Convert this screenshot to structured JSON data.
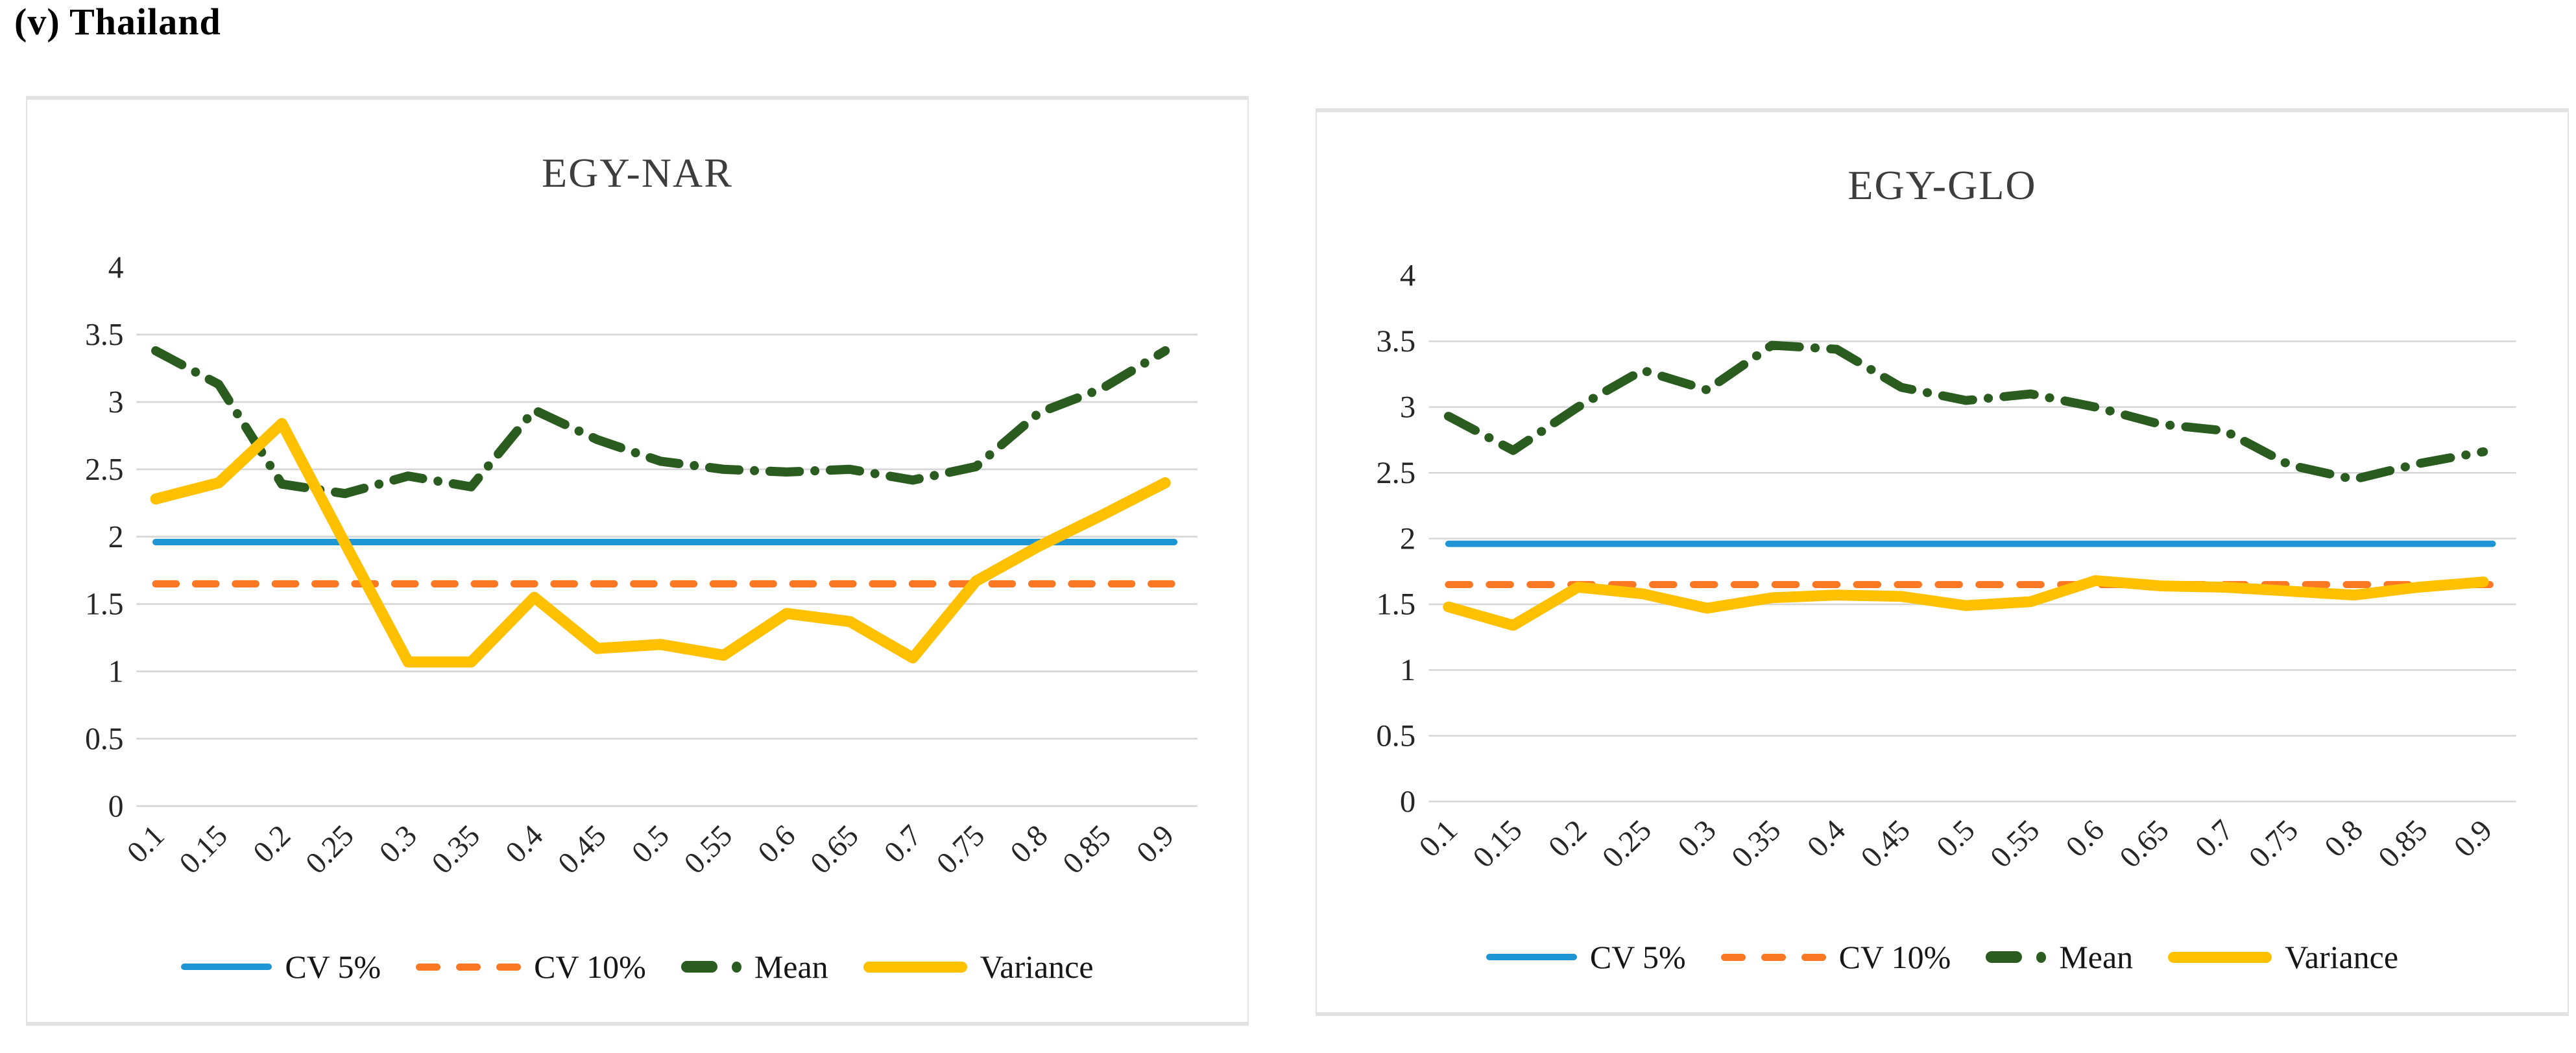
{
  "page": {
    "heading": "(v) Thailand"
  },
  "colors": {
    "cv5": "#1e95d4",
    "cv10": "#fa7823",
    "mean": "#2a5c20",
    "variance": "#ffc000",
    "grid": "#d6d6d6",
    "axis_text": "#262626",
    "title_text": "#3d3d3d"
  },
  "legend": [
    {
      "key": "cv5",
      "label": "CV 5%"
    },
    {
      "key": "cv10",
      "label": "CV 10%"
    },
    {
      "key": "mean",
      "label": "Mean"
    },
    {
      "key": "variance",
      "label": "Variance"
    }
  ],
  "axes": {
    "y_ticks": [
      "4",
      "3.5",
      "3",
      "2.5",
      "2",
      "1.5",
      "1",
      "0.5",
      "0"
    ],
    "y_min": 0,
    "y_max": 4,
    "grid_values": [
      0,
      0.5,
      1,
      1.5,
      2,
      2.5,
      3,
      3.5
    ]
  },
  "chart_data": [
    {
      "type": "line",
      "title": "EGY-NAR",
      "xlabel": "",
      "ylabel": "",
      "ylim": [
        0,
        4
      ],
      "grid": true,
      "legend_position": "bottom",
      "categories": [
        "0.1",
        "0.15",
        "0.2",
        "0.25",
        "0.3",
        "0.35",
        "0.4",
        "0.45",
        "0.5",
        "0.55",
        "0.6",
        "0.65",
        "0.7",
        "0.75",
        "0.8",
        "0.85",
        "0.9"
      ],
      "series": [
        {
          "name": "CV 5%",
          "style": "cv5",
          "constant": 1.96
        },
        {
          "name": "CV 10%",
          "style": "cv10",
          "constant": 1.65
        },
        {
          "name": "Mean",
          "style": "mean",
          "values": [
            3.38,
            3.13,
            2.39,
            2.32,
            2.45,
            2.37,
            2.94,
            2.72,
            2.56,
            2.5,
            2.48,
            2.5,
            2.42,
            2.52,
            2.92,
            3.1,
            3.38
          ]
        },
        {
          "name": "Variance",
          "style": "variance",
          "values": [
            2.28,
            2.4,
            2.84,
            1.95,
            1.07,
            1.07,
            1.55,
            1.17,
            1.2,
            1.12,
            1.43,
            1.37,
            1.1,
            1.67,
            1.93,
            2.16,
            2.4
          ]
        }
      ]
    },
    {
      "type": "line",
      "title": "EGY-GLO",
      "xlabel": "",
      "ylabel": "",
      "ylim": [
        0,
        4
      ],
      "grid": true,
      "legend_position": "bottom",
      "categories": [
        "0.1",
        "0.15",
        "0.2",
        "0.25",
        "0.3",
        "0.35",
        "0.4",
        "0.45",
        "0.5",
        "0.55",
        "0.6",
        "0.65",
        "0.7",
        "0.75",
        "0.8",
        "0.85",
        "0.9"
      ],
      "series": [
        {
          "name": "CV 5%",
          "style": "cv5",
          "constant": 1.96
        },
        {
          "name": "CV 10%",
          "style": "cv10",
          "constant": 1.65
        },
        {
          "name": "Mean",
          "style": "mean",
          "values": [
            2.93,
            2.67,
            3.0,
            3.28,
            3.13,
            3.47,
            3.44,
            3.15,
            3.05,
            3.1,
            3.0,
            2.87,
            2.82,
            2.56,
            2.45,
            2.57,
            2.66
          ]
        },
        {
          "name": "Variance",
          "style": "variance",
          "values": [
            1.48,
            1.34,
            1.63,
            1.58,
            1.47,
            1.55,
            1.57,
            1.56,
            1.49,
            1.52,
            1.68,
            1.64,
            1.63,
            1.6,
            1.57,
            1.63,
            1.67
          ]
        }
      ]
    }
  ]
}
